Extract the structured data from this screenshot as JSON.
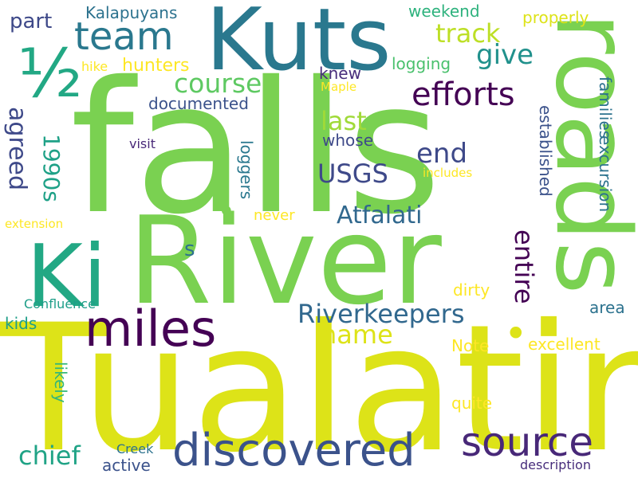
{
  "words": [
    {
      "id": "falls",
      "text": "falls",
      "color": "#7ad151"
    },
    {
      "id": "tualatin",
      "text": "Tualatin",
      "color": "#dde318"
    },
    {
      "id": "river",
      "text": "River",
      "color": "#7ad151"
    },
    {
      "id": "roads",
      "text": "roads",
      "color": "#7ad151"
    },
    {
      "id": "kuts",
      "text": "Kuts",
      "color": "#2a788e"
    },
    {
      "id": "ki",
      "text": "Ki",
      "color": "#22a884"
    },
    {
      "id": "miles",
      "text": "miles",
      "color": "#440154"
    },
    {
      "id": "discovered",
      "text": "discovered",
      "color": "#3b528b"
    },
    {
      "id": "source",
      "text": "source",
      "color": "#482878"
    },
    {
      "id": "team",
      "text": "team",
      "color": "#2a788e"
    },
    {
      "id": "half",
      "text": "½",
      "color": "#22a884"
    },
    {
      "id": "efforts",
      "text": "efforts",
      "color": "#440154"
    },
    {
      "id": "riverkeepers",
      "text": "Riverkeepers",
      "color": "#31688e"
    },
    {
      "id": "atfalati",
      "text": "Atfalati",
      "color": "#31688e"
    },
    {
      "id": "course",
      "text": "course",
      "color": "#5ec962"
    },
    {
      "id": "track",
      "text": "track",
      "color": "#bddf26"
    },
    {
      "id": "give",
      "text": "give",
      "color": "#21918c"
    },
    {
      "id": "last",
      "text": "last",
      "color": "#a0da39"
    },
    {
      "id": "end",
      "text": "end",
      "color": "#3e4989"
    },
    {
      "id": "usgs",
      "text": "USGS",
      "color": "#3e4989"
    },
    {
      "id": "name",
      "text": "name",
      "color": "#dde318"
    },
    {
      "id": "part",
      "text": "part",
      "color": "#3e4989"
    },
    {
      "id": "chief",
      "text": "chief",
      "color": "#20a386"
    },
    {
      "id": "entire",
      "text": "entire",
      "color": "#440154"
    },
    {
      "id": "agreed",
      "text": "agreed",
      "color": "#3e4989"
    },
    {
      "id": "y1990s",
      "text": "1990s",
      "color": "#1fa187"
    },
    {
      "id": "kalapuyans",
      "text": "Kalapuyans",
      "color": "#2c728e"
    },
    {
      "id": "weekend",
      "text": "weekend",
      "color": "#2db27d"
    },
    {
      "id": "properly",
      "text": "properly",
      "color": "#dde318"
    },
    {
      "id": "logging",
      "text": "logging",
      "color": "#4ac16d"
    },
    {
      "id": "hunters",
      "text": "hunters",
      "color": "#fde725"
    },
    {
      "id": "hike",
      "text": "hike",
      "color": "#fde725"
    },
    {
      "id": "documented",
      "text": "documented",
      "color": "#3b528b"
    },
    {
      "id": "knew",
      "text": "knew",
      "color": "#472d7b"
    },
    {
      "id": "whose",
      "text": "whose",
      "color": "#3e4989"
    },
    {
      "id": "maple",
      "text": "Maple",
      "color": "#fde725"
    },
    {
      "id": "visit",
      "text": "visit",
      "color": "#482878"
    },
    {
      "id": "loggers",
      "text": "loggers",
      "color": "#2a788e"
    },
    {
      "id": "established",
      "text": "established",
      "color": "#3b528b"
    },
    {
      "id": "excursion",
      "text": "excursion",
      "color": "#2c728e"
    },
    {
      "id": "families",
      "text": "families",
      "color": "#2c728e"
    },
    {
      "id": "includes",
      "text": "includes",
      "color": "#fde725"
    },
    {
      "id": "never",
      "text": "never",
      "color": "#fde725"
    },
    {
      "id": "extension",
      "text": "extension",
      "color": "#fde725"
    },
    {
      "id": "s",
      "text": "s",
      "color": "#2c728e"
    },
    {
      "id": "dirty",
      "text": "dirty",
      "color": "#fde725"
    },
    {
      "id": "confluence",
      "text": "Confluence",
      "color": "#1f9e89"
    },
    {
      "id": "area",
      "text": "area",
      "color": "#2c728e"
    },
    {
      "id": "kids",
      "text": "kids",
      "color": "#1f9e89"
    },
    {
      "id": "note",
      "text": "Note",
      "color": "#fde725"
    },
    {
      "id": "excellent",
      "text": "excellent",
      "color": "#fde725"
    },
    {
      "id": "likely",
      "text": "likely",
      "color": "#35b779"
    },
    {
      "id": "quite",
      "text": "quite",
      "color": "#fde725"
    },
    {
      "id": "creek",
      "text": "Creek",
      "color": "#2c728e"
    },
    {
      "id": "active",
      "text": "active",
      "color": "#3b528b"
    },
    {
      "id": "description",
      "text": "description",
      "color": "#472d7b"
    },
    {
      "id": "dot1",
      "text": "•",
      "color": "#7ad151"
    },
    {
      "id": "dot2",
      "text": "•",
      "color": "#dde318"
    }
  ]
}
